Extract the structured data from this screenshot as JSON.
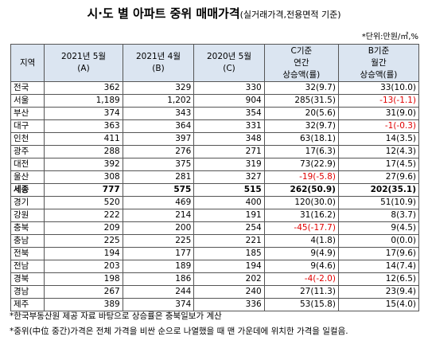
{
  "header": {
    "title": "시·도 별 아파트 중위 매매가격",
    "subtitle": "(실거래가격,전용면적 기준)",
    "unit": "*단위:만원/㎡,%"
  },
  "table": {
    "columns": [
      "지역",
      "2021년 5월\n(A)",
      "2021년 4월\n(B)",
      "2020년 5월\n(C)",
      "C기준\n연간\n상승액(률)",
      "B기준\n월간\n상승액(률)"
    ],
    "rows": [
      [
        "전국",
        "362",
        "329",
        "330",
        "32(9.7)",
        "33(10.0)"
      ],
      [
        "서울",
        "1,189",
        "1,202",
        "904",
        "285(31.5)",
        "-13(-1.1)"
      ],
      [
        "부산",
        "374",
        "343",
        "354",
        "20(5.6)",
        "31(9.0)"
      ],
      [
        "대구",
        "363",
        "364",
        "331",
        "32(9.7)",
        "-1(-0.3)"
      ],
      [
        "인천",
        "411",
        "397",
        "348",
        "63(18.1)",
        "14(3.5)"
      ],
      [
        "광주",
        "288",
        "276",
        "271",
        "17(6.3)",
        "12(4.3)"
      ],
      [
        "대전",
        "392",
        "375",
        "319",
        "73(22.9)",
        "17(4.5)"
      ],
      [
        "울산",
        "308",
        "281",
        "327",
        "-19(-5.8)",
        "27(9.6)"
      ],
      [
        "세종",
        "777",
        "575",
        "515",
        "262(50.9)",
        "202(35.1)"
      ],
      [
        "경기",
        "520",
        "469",
        "400",
        "120(30.0)",
        "51(10.9)"
      ],
      [
        "강원",
        "222",
        "214",
        "191",
        "31(16.2)",
        "8(3.7)"
      ],
      [
        "충북",
        "209",
        "200",
        "254",
        "-45(-17.7)",
        "9(4.5)"
      ],
      [
        "충남",
        "225",
        "225",
        "221",
        "4(1.8)",
        "0(0.0)"
      ],
      [
        "전북",
        "194",
        "177",
        "185",
        "9(4.9)",
        "17(9.6)"
      ],
      [
        "전남",
        "203",
        "189",
        "194",
        "9(4.6)",
        "14(7.4)"
      ],
      [
        "경북",
        "198",
        "186",
        "202",
        "-4(-2.0)",
        "12(6.5)"
      ],
      [
        "경남",
        "267",
        "244",
        "240",
        "27(11.3)",
        "23(9.4)"
      ],
      [
        "제주",
        "389",
        "374",
        "336",
        "53(15.8)",
        "15(4.0)"
      ]
    ]
  },
  "footnotes": [
    "*한국부동산원 제공 자료 바탕으로 상승률은 충북일보가 계산",
    "*중위(中位 중간)가격은 전체 가격을 비싼 순으로 나열했을 때 맨 가운데에 위치한 가격을 일컬음."
  ]
}
